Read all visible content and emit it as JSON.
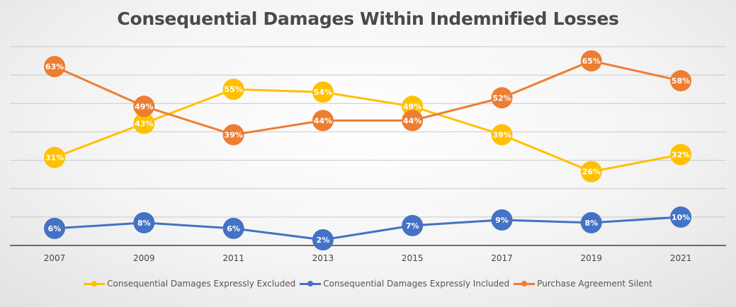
{
  "chart_data": {
    "type": "line",
    "title": "Consequential Damages Within Indemnified Losses",
    "xlabel": "",
    "ylabel": "",
    "categories": [
      "2007",
      "2009",
      "2011",
      "2013",
      "2015",
      "2017",
      "2019",
      "2021"
    ],
    "ylim": [
      0,
      70
    ],
    "grid": true,
    "legend_position": "bottom",
    "series": [
      {
        "name": "Consequential Damages Expressly Excluded",
        "color": "#FFC000",
        "values": [
          31,
          43,
          55,
          54,
          49,
          39,
          26,
          32
        ],
        "labels": [
          "31%",
          "43%",
          "55%",
          "54%",
          "49%",
          "39%",
          "26%",
          "32%"
        ]
      },
      {
        "name": "Consequential Damages Expressly Included",
        "color": "#4472C4",
        "values": [
          6,
          8,
          6,
          2,
          7,
          9,
          8,
          10
        ],
        "labels": [
          "6%",
          "8%",
          "6%",
          "2%",
          "7%",
          "9%",
          "8%",
          "10%"
        ]
      },
      {
        "name": "Purchase Agreement Silent",
        "color": "#ED7D31",
        "values": [
          63,
          49,
          39,
          44,
          44,
          52,
          65,
          58
        ],
        "labels": [
          "63%",
          "49%",
          "39%",
          "44%",
          "44%",
          "52%",
          "65%",
          "58%"
        ]
      }
    ]
  }
}
